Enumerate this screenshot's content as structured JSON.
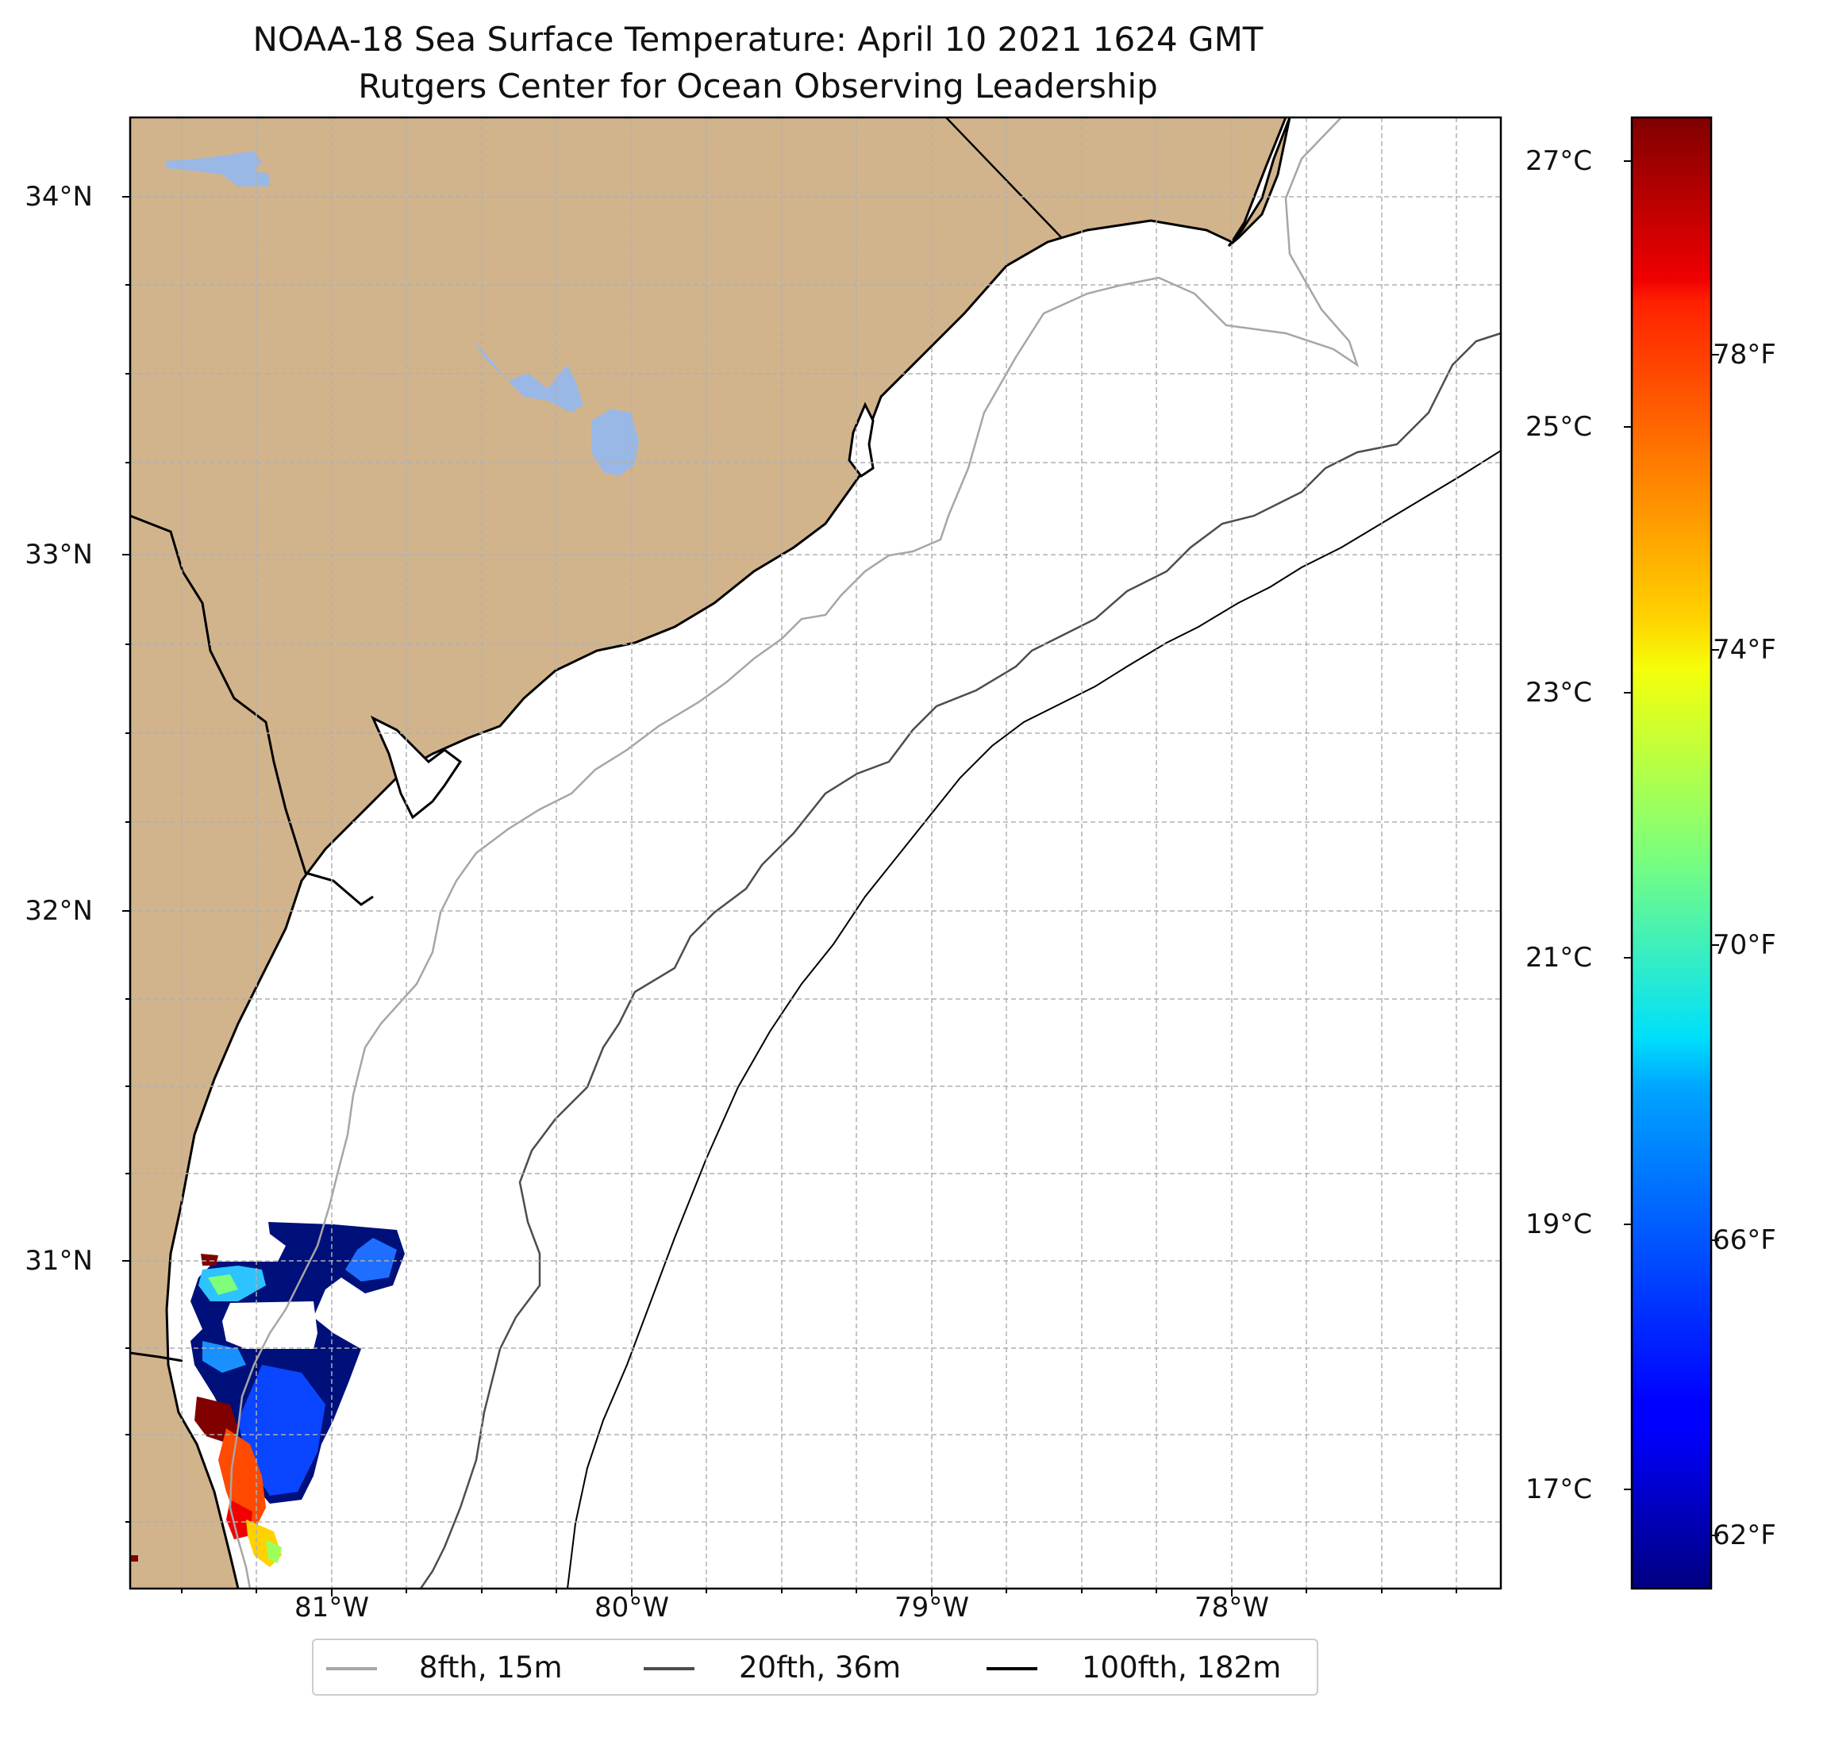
{
  "title": "NOAA-18 Sea Surface Temperature: April 10 2021 1624 GMT",
  "subtitle": "Rutgers Center for Ocean Observing Leadership",
  "map": {
    "extent": {
      "lon_min": -81.68,
      "lon_max": -77.12,
      "lat_min": 30.08,
      "lat_max": 34.22
    },
    "lat_ticks": [
      {
        "value": 34,
        "label": "34°N"
      },
      {
        "value": 33,
        "label": "33°N"
      },
      {
        "value": 32,
        "label": "32°N"
      },
      {
        "value": 31,
        "label": "31°N"
      }
    ],
    "lon_ticks": [
      {
        "value": -81,
        "label": "81°W"
      },
      {
        "value": -80,
        "label": "80°W"
      },
      {
        "value": -79,
        "label": "79°W"
      },
      {
        "value": -78,
        "label": "78°W"
      }
    ],
    "gridlines": "dashed, every 0.25°",
    "colors": {
      "land": "#d2b48c",
      "lakes": "#9ab8e6",
      "ocean": "#ffffff",
      "coast": "#000000"
    }
  },
  "colorbar": {
    "colormap": "jet",
    "celsius_ticks": [
      {
        "value": 27,
        "label": "27°C"
      },
      {
        "value": 25,
        "label": "25°C"
      },
      {
        "value": 23,
        "label": "23°C"
      },
      {
        "value": 21,
        "label": "21°C"
      },
      {
        "value": 19,
        "label": "19°C"
      },
      {
        "value": 17,
        "label": "17°C"
      }
    ],
    "fahrenheit_ticks": [
      {
        "value": 78,
        "label": "78°F"
      },
      {
        "value": 74,
        "label": "74°F"
      },
      {
        "value": 70,
        "label": "70°F"
      },
      {
        "value": 66,
        "label": "66°F"
      },
      {
        "value": 62,
        "label": "62°F"
      }
    ]
  },
  "legend": {
    "items": [
      {
        "label": "8fth, 15m",
        "color": "#a6a6a6"
      },
      {
        "label": "20fth, 36m",
        "color": "#4d4d4d"
      },
      {
        "label": "100fth, 182m",
        "color": "#000000"
      }
    ]
  }
}
